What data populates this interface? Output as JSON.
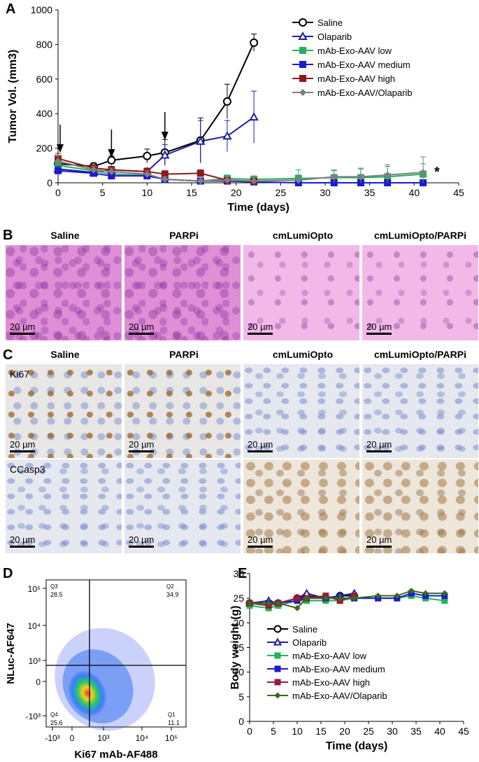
{
  "panels": {
    "a_letter": "A",
    "b_letter": "B",
    "c_letter": "C",
    "d_letter": "D",
    "e_letter": "E"
  },
  "panel_b": {
    "columns": [
      "Saline",
      "PARPi",
      "cmLumiOpto",
      "cmLumiOpto/PARPi"
    ],
    "scale": "20 µm"
  },
  "panel_c": {
    "columns": [
      "Saline",
      "PARPi",
      "cmLumiOpto",
      "cmLumiOpto/PARPi"
    ],
    "rows": [
      "Ki67",
      "CCasp3"
    ],
    "scale": "20 µm"
  },
  "panel_d": {
    "xlabel": "Ki67 mAb-AF488",
    "ylabel": "NLuc-AF647",
    "x_ticks": [
      "-10³",
      "0",
      "10³",
      "10⁴",
      "10⁵"
    ],
    "y_ticks": [
      "10⁵",
      "10⁴",
      "10³",
      "0",
      "-10³"
    ],
    "quadrants": [
      {
        "name": "Q3",
        "value": "28.5"
      },
      {
        "name": "Q2",
        "value": "34.9"
      },
      {
        "name": "Q4",
        "value": "25.6"
      },
      {
        "name": "Q1",
        "value": "11.1"
      }
    ]
  },
  "chart_data": [
    {
      "type": "line",
      "xlabel": "Time (days)",
      "ylabel": "Tumor Vol. (mm3)",
      "xlim": [
        0,
        45
      ],
      "ylim": [
        0,
        1000
      ],
      "x_ticks": [
        0,
        5,
        10,
        15,
        20,
        25,
        30,
        35,
        40,
        45
      ],
      "y_ticks": [
        0,
        200,
        400,
        600,
        800,
        1000
      ],
      "annotation": "*",
      "arrows_at_days": [
        0,
        6,
        12
      ],
      "series": [
        {
          "name": "Saline",
          "color": "#000000",
          "marker": "circle-open",
          "x": [
            0,
            4,
            6,
            10,
            12,
            16,
            19,
            22
          ],
          "y": [
            110,
            95,
            130,
            155,
            175,
            245,
            470,
            810
          ],
          "err": [
            30,
            20,
            25,
            40,
            75,
            130,
            100,
            50
          ]
        },
        {
          "name": "Olaparib",
          "color": "#1f1f9a",
          "marker": "triangle-open",
          "x": [
            0,
            4,
            6,
            10,
            12,
            16,
            19,
            22
          ],
          "y": [
            80,
            60,
            75,
            65,
            160,
            240,
            270,
            380
          ],
          "err": [
            30,
            20,
            20,
            20,
            60,
            120,
            90,
            150
          ]
        },
        {
          "name": "mAb-Exo-AAV low",
          "color": "#22b25a",
          "marker": "square",
          "x": [
            0,
            4,
            6,
            10,
            12,
            16,
            19,
            22,
            27,
            31,
            34,
            37,
            41
          ],
          "y": [
            100,
            70,
            50,
            45,
            20,
            10,
            25,
            20,
            25,
            30,
            30,
            35,
            50
          ],
          "err": [
            25,
            20,
            20,
            15,
            10,
            10,
            20,
            20,
            50,
            40,
            50,
            60,
            60
          ]
        },
        {
          "name": "mAb-Exo-AAV medium",
          "color": "#1a1ad0",
          "marker": "square",
          "x": [
            0,
            4,
            6,
            10,
            12,
            16,
            19,
            22,
            27,
            31,
            34,
            37,
            41
          ],
          "y": [
            70,
            55,
            40,
            40,
            20,
            10,
            10,
            5,
            0,
            0,
            0,
            0,
            0
          ],
          "err": [
            25,
            20,
            15,
            15,
            10,
            10,
            10,
            10,
            5,
            5,
            5,
            5,
            5
          ]
        },
        {
          "name": "mAb-Exo-AAV high",
          "color": "#8b1a1a",
          "marker": "square",
          "x": [
            0,
            4,
            6,
            10,
            12,
            16,
            19,
            22
          ],
          "y": [
            140,
            85,
            75,
            65,
            50,
            55,
            15,
            10
          ],
          "err": [
            30,
            20,
            20,
            20,
            20,
            20,
            15,
            15
          ]
        },
        {
          "name": "mAb-Exo-AAV/Olaparib",
          "color": "#7f7f7f",
          "marker": "diamond",
          "x": [
            0,
            4,
            6,
            10,
            12,
            16,
            19,
            22,
            27,
            31,
            34,
            37,
            41
          ],
          "y": [
            125,
            75,
            65,
            50,
            20,
            10,
            15,
            10,
            15,
            35,
            35,
            45,
            60
          ],
          "err": [
            30,
            20,
            20,
            20,
            15,
            10,
            20,
            20,
            30,
            40,
            50,
            60,
            90
          ]
        }
      ]
    },
    {
      "type": "line",
      "xlabel": "Time (days)",
      "ylabel": "Body weight (g)",
      "xlim": [
        0,
        45
      ],
      "ylim": [
        0,
        30
      ],
      "x_ticks": [
        0,
        5,
        10,
        15,
        20,
        25,
        30,
        35,
        40,
        45
      ],
      "y_ticks": [
        0,
        5,
        10,
        15,
        20,
        25,
        30
      ],
      "series": [
        {
          "name": "Saline",
          "color": "#000000",
          "marker": "circle-open",
          "x": [
            0,
            4,
            6,
            10,
            12,
            16,
            19,
            22
          ],
          "y": [
            24,
            24,
            24,
            25,
            25.5,
            25,
            25.5,
            25.5
          ]
        },
        {
          "name": "Olaparib",
          "color": "#1f1f9a",
          "marker": "triangle-open",
          "x": [
            0,
            4,
            6,
            10,
            12,
            16,
            19,
            22
          ],
          "y": [
            24,
            24.5,
            24,
            25,
            26,
            25,
            25.5,
            26
          ]
        },
        {
          "name": "mAb-Exo-AAV low",
          "color": "#22b25a",
          "marker": "square",
          "x": [
            0,
            4,
            6,
            10,
            12,
            16,
            19,
            22,
            27,
            31,
            34,
            37,
            41
          ],
          "y": [
            23.5,
            23,
            23.5,
            24.5,
            24.5,
            24.5,
            24.5,
            25,
            25,
            25,
            25.5,
            25,
            24.5
          ]
        },
        {
          "name": "mAb-Exo-AAV medium",
          "color": "#1a1ad0",
          "marker": "square",
          "x": [
            0,
            4,
            6,
            10,
            12,
            16,
            19,
            22,
            27,
            31,
            34,
            37,
            41
          ],
          "y": [
            24,
            24,
            24,
            24.5,
            25,
            25,
            25,
            25,
            25,
            25,
            26,
            25.5,
            25.5
          ]
        },
        {
          "name": "mAb-Exo-AAV high",
          "color": "#9a1a3a",
          "marker": "square",
          "x": [
            0,
            4,
            6,
            10,
            12,
            16,
            19,
            22
          ],
          "y": [
            24,
            23.5,
            24,
            25,
            25,
            25.5,
            24.5,
            25.5
          ]
        },
        {
          "name": "mAb-Exo-AAV/Olaparib",
          "color": "#3a6a1a",
          "marker": "diamond",
          "x": [
            0,
            4,
            6,
            10,
            12,
            16,
            19,
            22,
            27,
            31,
            34,
            37,
            41
          ],
          "y": [
            24,
            24,
            24,
            23,
            25,
            25,
            25,
            25,
            25.5,
            25.5,
            26.5,
            26,
            26
          ]
        }
      ]
    }
  ]
}
